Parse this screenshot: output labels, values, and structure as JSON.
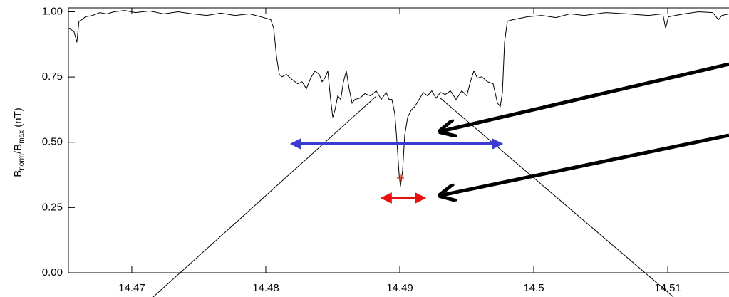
{
  "chart_data": {
    "type": "line",
    "ylabel": [
      "B",
      "norm",
      "/B",
      "max",
      " (nT)"
    ],
    "xlim": [
      14.46527,
      14.51457
    ],
    "ylim": [
      0,
      1.015
    ],
    "xticks": [
      14.47,
      14.48,
      14.49,
      14.5,
      14.51
    ],
    "yticks": [
      {
        "value": 0,
        "label": "0.00"
      },
      {
        "value": 0.25,
        "label": "0.25"
      },
      {
        "value": 0.5,
        "label": "0.50"
      },
      {
        "value": 0.75,
        "label": "0.75"
      },
      {
        "value": 1,
        "label": "1.00"
      }
    ],
    "series": [
      {
        "color": "#000000",
        "x": [
          14.46527,
          14.46548,
          14.46569,
          14.4659,
          14.46606,
          14.46628,
          14.46654,
          14.46707,
          14.46761,
          14.46814,
          14.46867,
          14.46947,
          14.47027,
          14.47133,
          14.47239,
          14.47346,
          14.47452,
          14.47559,
          14.47665,
          14.47771,
          14.47878,
          14.47984,
          14.48037,
          14.48059,
          14.4808,
          14.48101,
          14.48122,
          14.48154,
          14.48197,
          14.48239,
          14.48271,
          14.48303,
          14.48335,
          14.48367,
          14.48399,
          14.4842,
          14.48441,
          14.48463,
          14.48484,
          14.485,
          14.48516,
          14.48537,
          14.48559,
          14.4858,
          14.48601,
          14.48622,
          14.48644,
          14.48665,
          14.48702,
          14.48739,
          14.48782,
          14.48824,
          14.48862,
          14.48899,
          14.4892,
          14.48941,
          14.48963,
          14.48979,
          14.48995,
          14.49005,
          14.49021,
          14.49037,
          14.49059,
          14.49085,
          14.49112,
          14.49144,
          14.49176,
          14.49207,
          14.49239,
          14.49271,
          14.49303,
          14.4934,
          14.49378,
          14.4942,
          14.49463,
          14.495,
          14.49527,
          14.49553,
          14.4958,
          14.49612,
          14.49654,
          14.49697,
          14.49729,
          14.4975,
          14.49766,
          14.49782,
          14.49803,
          14.49846,
          14.49952,
          14.50059,
          14.50165,
          14.50271,
          14.50378,
          14.50537,
          14.50697,
          14.50856,
          14.50963,
          14.50984,
          14.51005,
          14.51122,
          14.51229,
          14.51335,
          14.51378,
          14.51404,
          14.51457
        ],
        "values": [
          0.937,
          0.932,
          0.923,
          0.883,
          0.964,
          0.97,
          0.981,
          0.986,
          0.997,
          0.992,
          1.0,
          1.005,
          0.997,
          1.003,
          0.992,
          1.0,
          0.992,
          0.986,
          0.995,
          0.986,
          0.992,
          0.978,
          0.97,
          0.937,
          0.828,
          0.76,
          0.751,
          0.76,
          0.74,
          0.724,
          0.732,
          0.705,
          0.746,
          0.773,
          0.76,
          0.732,
          0.746,
          0.773,
          0.664,
          0.596,
          0.623,
          0.678,
          0.664,
          0.732,
          0.773,
          0.705,
          0.65,
          0.664,
          0.669,
          0.686,
          0.678,
          0.697,
          0.664,
          0.691,
          0.664,
          0.664,
          0.609,
          0.5,
          0.377,
          0.331,
          0.391,
          0.527,
          0.596,
          0.623,
          0.637,
          0.664,
          0.691,
          0.678,
          0.697,
          0.669,
          0.691,
          0.683,
          0.697,
          0.664,
          0.697,
          0.678,
          0.732,
          0.773,
          0.746,
          0.751,
          0.732,
          0.724,
          0.65,
          0.637,
          0.691,
          0.883,
          0.964,
          0.97,
          0.981,
          0.986,
          0.978,
          0.992,
          0.986,
          0.997,
          0.992,
          0.986,
          0.992,
          0.937,
          0.981,
          0.992,
          1.0,
          0.997,
          0.97,
          0.986,
          0.992
        ]
      }
    ],
    "markers": [
      {
        "x": 14.49005,
        "y": 0.363,
        "color": "#e8301c"
      }
    ]
  }
}
